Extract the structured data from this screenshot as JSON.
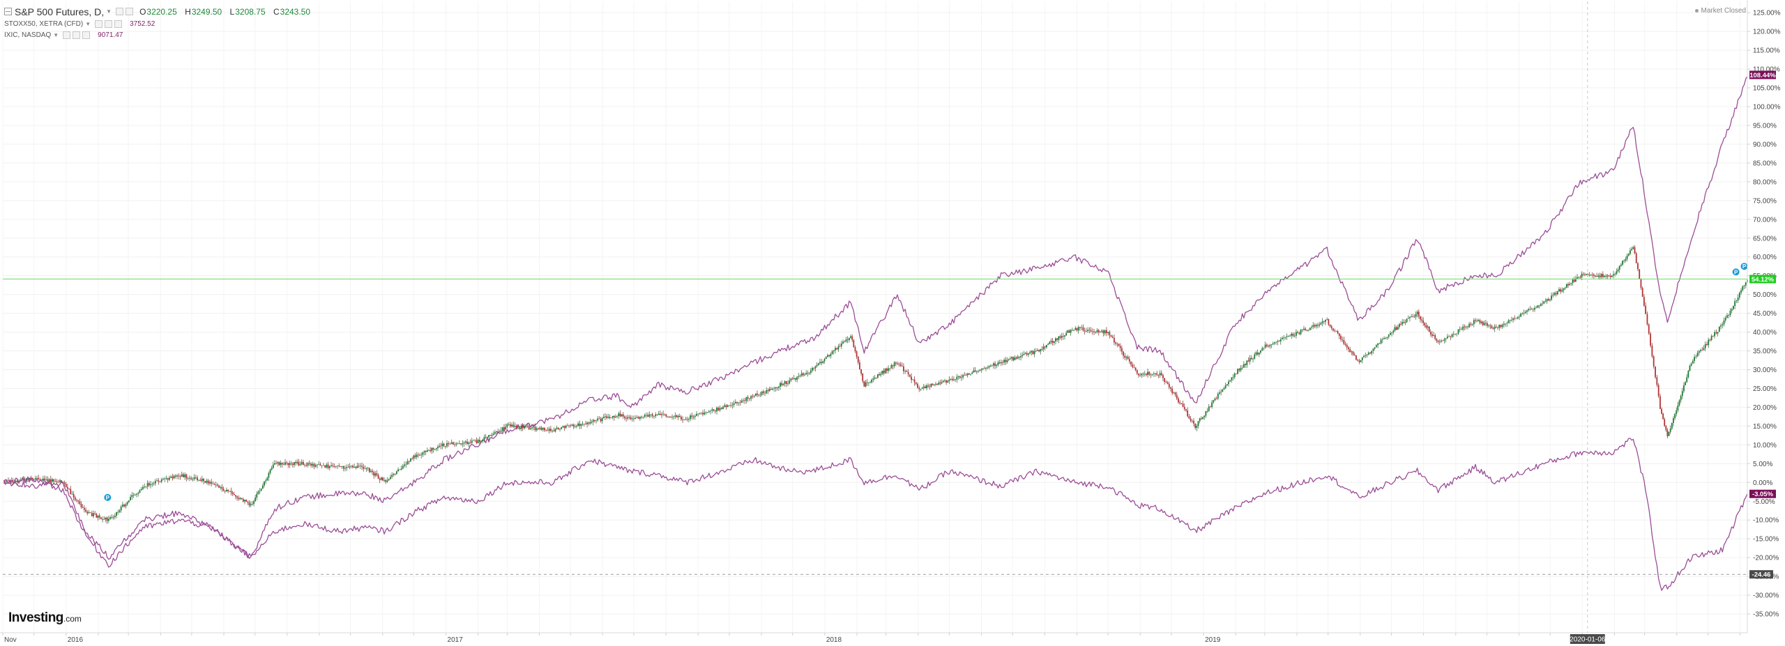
{
  "legend": {
    "main": {
      "name": "S&P 500 Futures, D,",
      "open": "3220.25",
      "high": "3249.50",
      "low": "3208.75",
      "close": "3243.50"
    },
    "secondary": [
      {
        "name": "STOXX50, XETRA (CFD)",
        "value": "3752.52"
      },
      {
        "name": "IXIC, NASDAQ",
        "value": "9071.47"
      }
    ]
  },
  "status": "Market Closed",
  "brand": {
    "name": "Investing",
    "domain": ".com"
  },
  "colors": {
    "spx_up": "#1a7c2e",
    "spx_down": "#b53232",
    "compare": "#9b4d96",
    "price_line": "#66dd66",
    "nasdaq_badge": "#7a1058",
    "stoxx_badge": "#7a1058",
    "spx_badge": "#22cc22",
    "marker": "#1b9ad6"
  },
  "chart_data": {
    "type": "line",
    "x_type": "date",
    "x_range": [
      "2015-11-01",
      "2020-06-08"
    ],
    "y_unit": "percent change",
    "ylim": [
      -40,
      128
    ],
    "y_ticks": [
      125,
      120,
      115,
      110,
      105,
      100,
      95,
      90,
      85,
      80,
      75,
      70,
      65,
      60,
      55,
      50,
      45,
      40,
      35,
      30,
      25,
      20,
      15,
      10,
      5,
      0,
      -5,
      -10,
      -15,
      -20,
      -25,
      -30,
      -35
    ],
    "x_tick_labels": [
      {
        "date": "2015-11-01",
        "label": "Nov"
      },
      {
        "date": "2016-01-01",
        "label": "2016"
      },
      {
        "date": "2017-01-01",
        "label": "2017"
      },
      {
        "date": "2018-01-01",
        "label": "2018"
      },
      {
        "date": "2019-01-01",
        "label": "2019"
      }
    ],
    "crosshair": {
      "date": "2020-01-06",
      "label": "2020-01-06",
      "y_value": -24.46,
      "y_label": "-24.46"
    },
    "price_line_value": 54.12,
    "badges": [
      {
        "series": "IXIC, NASDAQ",
        "label": "108.44%",
        "value": 108.44
      },
      {
        "series": "S&P 500 Futures",
        "label": "54.12%",
        "value": 54.12
      },
      {
        "series": "STOXX50, XETRA (CFD)",
        "label": "-3.05%",
        "value": -3.05
      }
    ],
    "markers": [
      {
        "date": "2016-02-10",
        "value": -4,
        "label": "P"
      },
      {
        "date": "2020-05-28",
        "value": 56,
        "label": "P"
      },
      {
        "date": "2020-06-05",
        "value": 57.5,
        "label": "P"
      }
    ],
    "series": [
      {
        "name": "IXIC, NASDAQ",
        "style": "line",
        "points": [
          [
            "2015-11-02",
            0
          ],
          [
            "2015-12-01",
            -1
          ],
          [
            "2015-12-29",
            0
          ],
          [
            "2016-01-20",
            -13
          ],
          [
            "2016-02-11",
            -20
          ],
          [
            "2016-03-15",
            -10
          ],
          [
            "2016-04-20",
            -8
          ],
          [
            "2016-05-20",
            -12
          ],
          [
            "2016-06-27",
            -20
          ],
          [
            "2016-07-20",
            -7
          ],
          [
            "2016-08-15",
            -4
          ],
          [
            "2016-09-20",
            -3
          ],
          [
            "2016-10-15",
            -3
          ],
          [
            "2016-11-04",
            -5
          ],
          [
            "2016-12-01",
            0
          ],
          [
            "2016-12-30",
            6
          ],
          [
            "2017-02-01",
            10
          ],
          [
            "2017-03-01",
            14
          ],
          [
            "2017-04-15",
            17
          ],
          [
            "2017-05-20",
            22
          ],
          [
            "2017-06-15",
            23
          ],
          [
            "2017-06-28",
            20
          ],
          [
            "2017-07-25",
            26
          ],
          [
            "2017-08-20",
            24
          ],
          [
            "2017-09-25",
            28
          ],
          [
            "2017-10-25",
            32
          ],
          [
            "2017-11-28",
            36
          ],
          [
            "2017-12-20",
            38
          ],
          [
            "2018-01-26",
            48
          ],
          [
            "2018-02-08",
            35
          ],
          [
            "2018-03-12",
            50
          ],
          [
            "2018-04-02",
            37
          ],
          [
            "2018-05-01",
            42
          ],
          [
            "2018-06-20",
            55
          ],
          [
            "2018-07-25",
            57
          ],
          [
            "2018-08-29",
            60
          ],
          [
            "2018-10-01",
            56
          ],
          [
            "2018-10-29",
            36
          ],
          [
            "2018-11-20",
            35
          ],
          [
            "2018-12-24",
            21
          ],
          [
            "2019-01-31",
            42
          ],
          [
            "2019-02-28",
            50
          ],
          [
            "2019-04-30",
            62
          ],
          [
            "2019-05-31",
            43
          ],
          [
            "2019-06-30",
            52
          ],
          [
            "2019-07-26",
            65
          ],
          [
            "2019-08-15",
            51
          ],
          [
            "2019-09-20",
            55
          ],
          [
            "2019-10-10",
            55
          ],
          [
            "2019-11-25",
            66
          ],
          [
            "2019-12-30",
            80
          ],
          [
            "2020-01-31",
            83
          ],
          [
            "2020-02-19",
            95
          ],
          [
            "2020-03-02",
            75
          ],
          [
            "2020-03-16",
            50
          ],
          [
            "2020-03-23",
            43
          ],
          [
            "2020-04-15",
            65
          ],
          [
            "2020-05-15",
            90
          ],
          [
            "2020-06-08",
            108
          ]
        ]
      },
      {
        "name": "S&P 500 Futures",
        "style": "candle",
        "points": [
          [
            "2015-11-02",
            0
          ],
          [
            "2015-12-01",
            1
          ],
          [
            "2015-12-29",
            0
          ],
          [
            "2016-01-20",
            -8
          ],
          [
            "2016-02-11",
            -10
          ],
          [
            "2016-03-15",
            -1
          ],
          [
            "2016-04-20",
            2
          ],
          [
            "2016-05-20",
            0
          ],
          [
            "2016-06-27",
            -6
          ],
          [
            "2016-07-20",
            5
          ],
          [
            "2016-08-15",
            5
          ],
          [
            "2016-09-20",
            4
          ],
          [
            "2016-10-15",
            4
          ],
          [
            "2016-11-04",
            0
          ],
          [
            "2016-12-01",
            7
          ],
          [
            "2016-12-30",
            10
          ],
          [
            "2017-02-01",
            11
          ],
          [
            "2017-03-01",
            15
          ],
          [
            "2017-04-15",
            14
          ],
          [
            "2017-05-20",
            16
          ],
          [
            "2017-06-15",
            18
          ],
          [
            "2017-06-28",
            17
          ],
          [
            "2017-07-25",
            18
          ],
          [
            "2017-08-20",
            17
          ],
          [
            "2017-09-25",
            20
          ],
          [
            "2017-10-25",
            23
          ],
          [
            "2017-11-28",
            27
          ],
          [
            "2017-12-20",
            30
          ],
          [
            "2018-01-26",
            39
          ],
          [
            "2018-02-08",
            26
          ],
          [
            "2018-03-12",
            32
          ],
          [
            "2018-04-02",
            25
          ],
          [
            "2018-05-01",
            27
          ],
          [
            "2018-06-20",
            32
          ],
          [
            "2018-07-25",
            35
          ],
          [
            "2018-08-29",
            41
          ],
          [
            "2018-10-01",
            40
          ],
          [
            "2018-10-29",
            29
          ],
          [
            "2018-11-20",
            29
          ],
          [
            "2018-12-24",
            15
          ],
          [
            "2019-01-31",
            29
          ],
          [
            "2019-02-28",
            36
          ],
          [
            "2019-04-30",
            43
          ],
          [
            "2019-05-31",
            32
          ],
          [
            "2019-06-30",
            40
          ],
          [
            "2019-07-26",
            45
          ],
          [
            "2019-08-15",
            37
          ],
          [
            "2019-09-20",
            43
          ],
          [
            "2019-10-10",
            41
          ],
          [
            "2019-11-25",
            48
          ],
          [
            "2019-12-30",
            55
          ],
          [
            "2020-01-31",
            55
          ],
          [
            "2020-02-19",
            63
          ],
          [
            "2020-03-02",
            45
          ],
          [
            "2020-03-16",
            20
          ],
          [
            "2020-03-23",
            12
          ],
          [
            "2020-04-15",
            32
          ],
          [
            "2020-05-15",
            42
          ],
          [
            "2020-06-08",
            54
          ]
        ]
      },
      {
        "name": "STOXX50, XETRA (CFD)",
        "style": "line",
        "points": [
          [
            "2015-11-02",
            0
          ],
          [
            "2015-12-01",
            1
          ],
          [
            "2015-12-29",
            -2
          ],
          [
            "2016-01-20",
            -14
          ],
          [
            "2016-02-11",
            -22
          ],
          [
            "2016-03-15",
            -12
          ],
          [
            "2016-04-20",
            -10
          ],
          [
            "2016-05-20",
            -12
          ],
          [
            "2016-06-27",
            -20
          ],
          [
            "2016-07-20",
            -13
          ],
          [
            "2016-08-15",
            -11
          ],
          [
            "2016-09-20",
            -13
          ],
          [
            "2016-10-15",
            -12
          ],
          [
            "2016-11-04",
            -13
          ],
          [
            "2016-12-01",
            -8
          ],
          [
            "2016-12-30",
            -4
          ],
          [
            "2017-02-01",
            -5
          ],
          [
            "2017-03-01",
            0
          ],
          [
            "2017-04-15",
            0
          ],
          [
            "2017-05-20",
            6
          ],
          [
            "2017-06-15",
            4
          ],
          [
            "2017-06-28",
            3
          ],
          [
            "2017-07-25",
            2
          ],
          [
            "2017-08-20",
            0
          ],
          [
            "2017-09-25",
            3
          ],
          [
            "2017-10-25",
            6
          ],
          [
            "2017-11-28",
            3
          ],
          [
            "2017-12-20",
            3
          ],
          [
            "2018-01-26",
            6
          ],
          [
            "2018-02-08",
            0
          ],
          [
            "2018-03-12",
            2
          ],
          [
            "2018-04-02",
            -2
          ],
          [
            "2018-05-01",
            3
          ],
          [
            "2018-06-20",
            -1
          ],
          [
            "2018-07-25",
            3
          ],
          [
            "2018-08-29",
            0
          ],
          [
            "2018-10-01",
            -1
          ],
          [
            "2018-10-29",
            -6
          ],
          [
            "2018-11-20",
            -7
          ],
          [
            "2018-12-24",
            -13
          ],
          [
            "2019-01-31",
            -7
          ],
          [
            "2019-02-28",
            -3
          ],
          [
            "2019-04-30",
            2
          ],
          [
            "2019-05-31",
            -4
          ],
          [
            "2019-06-30",
            0
          ],
          [
            "2019-07-26",
            3
          ],
          [
            "2019-08-15",
            -2
          ],
          [
            "2019-09-20",
            4
          ],
          [
            "2019-10-10",
            0
          ],
          [
            "2019-11-25",
            5
          ],
          [
            "2019-12-30",
            8
          ],
          [
            "2020-01-31",
            8
          ],
          [
            "2020-02-19",
            12
          ],
          [
            "2020-03-02",
            -2
          ],
          [
            "2020-03-16",
            -28
          ],
          [
            "2020-03-23",
            -28
          ],
          [
            "2020-04-15",
            -20
          ],
          [
            "2020-05-15",
            -18
          ],
          [
            "2020-06-08",
            -3
          ]
        ]
      }
    ]
  }
}
